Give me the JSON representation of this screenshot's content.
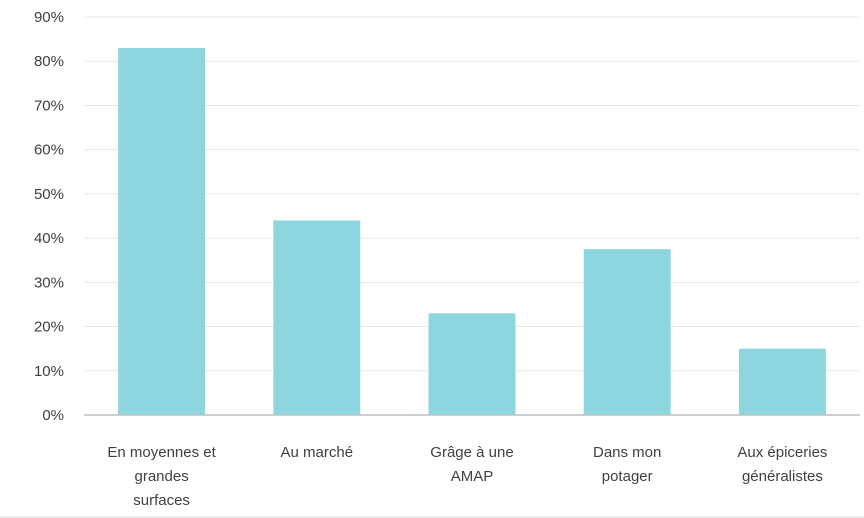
{
  "chart_data": {
    "type": "bar",
    "categories": [
      [
        "En moyennes et",
        "grandes",
        "surfaces"
      ],
      [
        "Au marché"
      ],
      [
        "Grâge à une",
        "AMAP"
      ],
      [
        "Dans mon",
        "potager"
      ],
      [
        "Aux épiceries",
        "généralistes"
      ]
    ],
    "values": [
      83,
      44,
      23,
      37.5,
      15
    ],
    "y_tick_labels": [
      "0%",
      "10%",
      "20%",
      "30%",
      "40%",
      "50%",
      "60%",
      "70%",
      "80%",
      "90%"
    ],
    "ylim": [
      0,
      90
    ],
    "y_unit": "%",
    "grid": true,
    "legend": "none",
    "title": "",
    "xlabel": "",
    "ylabel": "",
    "bar_color": "#8dd6e0"
  }
}
